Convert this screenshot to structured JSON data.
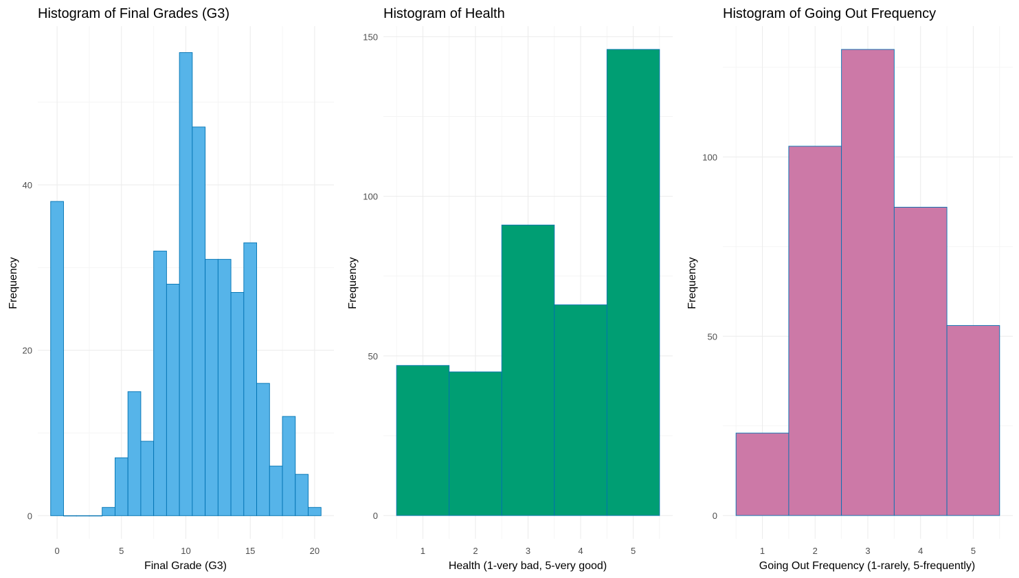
{
  "chart_data": [
    {
      "type": "bar",
      "title": "Histogram of Final Grades (G3)",
      "xlabel": "Final Grade (G3)",
      "ylabel": "Frequency",
      "bin_width": 1,
      "bins": [
        {
          "start": -0.5,
          "end": 0.5,
          "value": 38
        },
        {
          "start": 0.5,
          "end": 1.5,
          "value": 0
        },
        {
          "start": 1.5,
          "end": 2.5,
          "value": 0
        },
        {
          "start": 2.5,
          "end": 3.5,
          "value": 0
        },
        {
          "start": 3.5,
          "end": 4.5,
          "value": 1
        },
        {
          "start": 4.5,
          "end": 5.5,
          "value": 7
        },
        {
          "start": 5.5,
          "end": 6.5,
          "value": 15
        },
        {
          "start": 6.5,
          "end": 7.5,
          "value": 9
        },
        {
          "start": 7.5,
          "end": 8.5,
          "value": 32
        },
        {
          "start": 8.5,
          "end": 9.5,
          "value": 28
        },
        {
          "start": 9.5,
          "end": 10.5,
          "value": 56
        },
        {
          "start": 10.5,
          "end": 11.5,
          "value": 47
        },
        {
          "start": 11.5,
          "end": 12.5,
          "value": 31
        },
        {
          "start": 12.5,
          "end": 13.5,
          "value": 31
        },
        {
          "start": 13.5,
          "end": 14.5,
          "value": 27
        },
        {
          "start": 14.5,
          "end": 15.5,
          "value": 33
        },
        {
          "start": 15.5,
          "end": 16.5,
          "value": 16
        },
        {
          "start": 16.5,
          "end": 17.5,
          "value": 6
        },
        {
          "start": 17.5,
          "end": 18.5,
          "value": 12
        },
        {
          "start": 18.5,
          "end": 19.5,
          "value": 5
        },
        {
          "start": 19.5,
          "end": 20.5,
          "value": 1
        }
      ],
      "xlim": [
        -1.5,
        21.5
      ],
      "ylim": [
        -2.8,
        59.2
      ],
      "xticks": [
        0,
        5,
        10,
        15,
        20
      ],
      "yticks": [
        0,
        20,
        40
      ],
      "fill": "#56B4E9",
      "border": "#0072B2",
      "grid": true
    },
    {
      "type": "bar",
      "title": "Histogram of Health",
      "xlabel": "Health (1-very bad, 5-very good)",
      "ylabel": "Frequency",
      "bin_width": 1,
      "bins": [
        {
          "start": 0.5,
          "end": 1.5,
          "value": 47
        },
        {
          "start": 1.5,
          "end": 2.5,
          "value": 45
        },
        {
          "start": 2.5,
          "end": 3.5,
          "value": 91
        },
        {
          "start": 3.5,
          "end": 4.5,
          "value": 66
        },
        {
          "start": 4.5,
          "end": 5.5,
          "value": 146
        }
      ],
      "xlim": [
        0.25,
        5.75
      ],
      "ylim": [
        -7.3,
        153.3
      ],
      "xticks": [
        1,
        2,
        3,
        4,
        5
      ],
      "yticks": [
        0,
        50,
        100,
        150
      ],
      "fill": "#009E73",
      "border": "#0072B2",
      "grid": true
    },
    {
      "type": "bar",
      "title": "Histogram of Going Out Frequency",
      "xlabel": "Going Out Frequency (1-rarely, 5-frequently)",
      "ylabel": "Frequency",
      "bin_width": 1,
      "bins": [
        {
          "start": 0.5,
          "end": 1.5,
          "value": 23
        },
        {
          "start": 1.5,
          "end": 2.5,
          "value": 103
        },
        {
          "start": 2.5,
          "end": 3.5,
          "value": 130
        },
        {
          "start": 3.5,
          "end": 4.5,
          "value": 86
        },
        {
          "start": 4.5,
          "end": 5.5,
          "value": 53
        }
      ],
      "xlim": [
        0.25,
        5.75
      ],
      "ylim": [
        -6.5,
        136.5
      ],
      "xticks": [
        1,
        2,
        3,
        4,
        5
      ],
      "yticks": [
        0,
        50,
        100
      ],
      "fill": "#CC79A7",
      "border": "#0072B2",
      "grid": true
    }
  ]
}
